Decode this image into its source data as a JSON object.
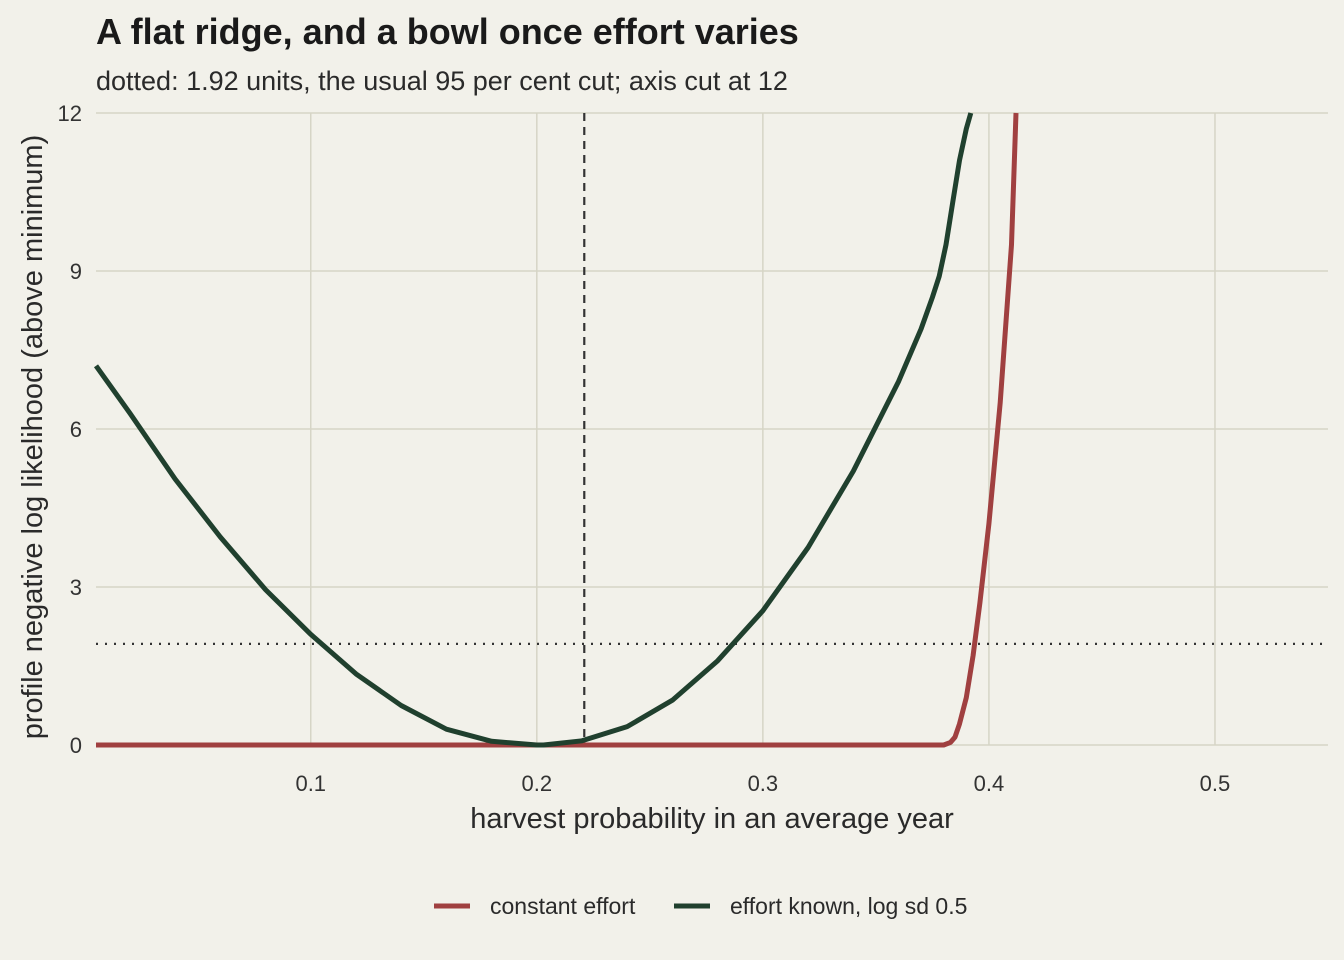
{
  "chart_data": {
    "type": "line",
    "title": "A flat ridge, and a bowl once effort varies",
    "subtitle": "dotted: 1.92 units, the usual 95 per cent cut; axis cut at 12",
    "xlabel": "harvest probability in an average year",
    "ylabel": "profile negative log likelihood (above minimum)",
    "xlim": [
      0.005,
      0.55
    ],
    "ylim": [
      0,
      12
    ],
    "x_ticks": [
      0.1,
      0.2,
      0.3,
      0.4,
      0.5
    ],
    "x_tick_labels": [
      "0.1",
      "0.2",
      "0.3",
      "0.4",
      "0.5"
    ],
    "y_ticks": [
      0,
      3,
      6,
      9,
      12
    ],
    "y_tick_labels": [
      "0",
      "3",
      "6",
      "9",
      "12"
    ],
    "grid": true,
    "legend_position": "bottom",
    "reference_lines": {
      "horizontal_dotted_y": 1.92,
      "vertical_dashed_x": 0.221
    },
    "series": [
      {
        "name": "constant effort",
        "color": "#a04040",
        "x": [
          0.005,
          0.05,
          0.1,
          0.15,
          0.2,
          0.25,
          0.3,
          0.35,
          0.38,
          0.383,
          0.385,
          0.387,
          0.39,
          0.393,
          0.396,
          0.4,
          0.405,
          0.41,
          0.412
        ],
        "y": [
          0,
          0,
          0,
          0,
          0,
          0,
          0,
          0,
          0,
          0.05,
          0.15,
          0.4,
          0.9,
          1.7,
          2.7,
          4.2,
          6.5,
          9.5,
          12
        ]
      },
      {
        "name": "effort known, log sd 0.5",
        "color": "#20402e",
        "x": [
          0.005,
          0.02,
          0.04,
          0.06,
          0.08,
          0.1,
          0.12,
          0.14,
          0.16,
          0.18,
          0.2,
          0.203,
          0.22,
          0.24,
          0.26,
          0.28,
          0.3,
          0.32,
          0.34,
          0.36,
          0.37,
          0.375,
          0.378,
          0.381,
          0.384,
          0.387,
          0.39,
          0.392
        ],
        "y": [
          7.2,
          6.3,
          5.05,
          3.95,
          2.95,
          2.1,
          1.35,
          0.75,
          0.3,
          0.07,
          0.0,
          0.0,
          0.08,
          0.35,
          0.85,
          1.6,
          2.55,
          3.75,
          5.2,
          6.9,
          7.9,
          8.5,
          8.9,
          9.5,
          10.3,
          11.1,
          11.7,
          12
        ]
      }
    ]
  }
}
